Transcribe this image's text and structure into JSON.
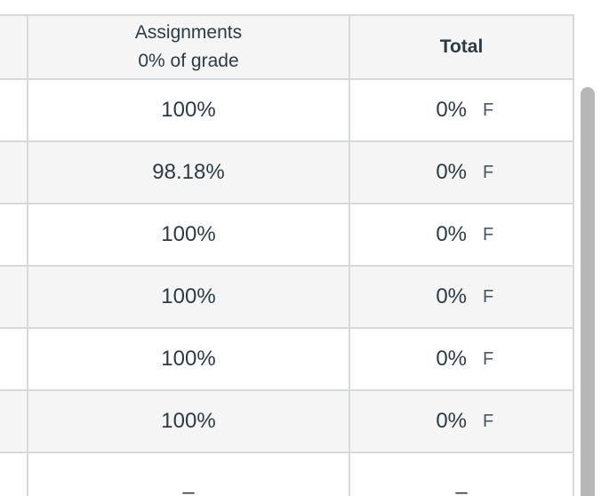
{
  "header": {
    "assignments_title": "Assignments",
    "assignments_weight": "0% of grade",
    "total_title": "Total"
  },
  "rows": [
    {
      "assignments": "100%",
      "total_pct": "0%",
      "total_letter": "F"
    },
    {
      "assignments": "98.18%",
      "total_pct": "0%",
      "total_letter": "F"
    },
    {
      "assignments": "100%",
      "total_pct": "0%",
      "total_letter": "F"
    },
    {
      "assignments": "100%",
      "total_pct": "0%",
      "total_letter": "F"
    },
    {
      "assignments": "100%",
      "total_pct": "0%",
      "total_letter": "F"
    },
    {
      "assignments": "100%",
      "total_pct": "0%",
      "total_letter": "F"
    },
    {
      "assignments": "–",
      "total_pct": "–",
      "total_letter": ""
    }
  ],
  "colors": {
    "border": "#d7dadc",
    "header_bg": "#f5f5f5",
    "text": "#2d3b45",
    "scrollbar_thumb": "#b7b7b7"
  }
}
